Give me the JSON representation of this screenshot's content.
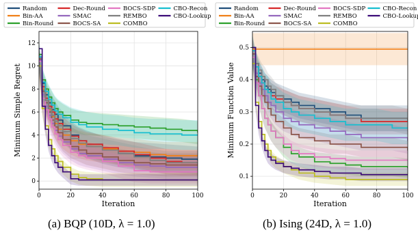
{
  "legend": [
    {
      "name": "Random",
      "color": "#1f4e79"
    },
    {
      "name": "Bin-AA",
      "color": "#f07f16"
    },
    {
      "name": "Bin-Round",
      "color": "#2ca02c"
    },
    {
      "name": "Dec-Round",
      "color": "#d62728"
    },
    {
      "name": "SMAC",
      "color": "#9467bd"
    },
    {
      "name": "BOCS-SA",
      "color": "#8c564b"
    },
    {
      "name": "BOCS-SDP",
      "color": "#e377c2"
    },
    {
      "name": "REMBO",
      "color": "#7f7f7f"
    },
    {
      "name": "COMBO",
      "color": "#bcbd22"
    },
    {
      "name": "CBO-Recon",
      "color": "#17becf"
    },
    {
      "name": "CBO-Lookup",
      "color": "#3b0a78"
    }
  ],
  "captions": {
    "a": "(a) BQP (10D, λ = 1.0)",
    "b": "(b) Ising (24D, λ = 1.0)"
  },
  "chart_data": [
    {
      "type": "line",
      "xlabel": "Iteration",
      "ylabel": "Minimum Simple Regret",
      "xlim": [
        0,
        100
      ],
      "ylim": [
        -0.7,
        13
      ],
      "xticks": [
        0,
        20,
        40,
        60,
        80,
        100
      ],
      "yticks": [
        0,
        2,
        4,
        6,
        8,
        10,
        12
      ],
      "grid": true,
      "legend_placement": "top",
      "x": [
        0,
        2,
        4,
        6,
        8,
        10,
        12,
        15,
        20,
        25,
        30,
        40,
        50,
        60,
        70,
        80,
        90,
        100
      ],
      "series": [
        {
          "name": "Random",
          "values": [
            11,
            8.5,
            7.5,
            6.8,
            6.2,
            5.8,
            5.3,
            4.8,
            4.0,
            3.5,
            3.2,
            2.7,
            2.4,
            2.2,
            2.1,
            2.0,
            1.9,
            1.8
          ],
          "band": 1.2
        },
        {
          "name": "Bin-AA",
          "values": [
            10.5,
            8.0,
            7.0,
            6.2,
            5.6,
            5.0,
            4.5,
            4.0,
            3.5,
            3.2,
            3.0,
            2.8,
            2.6,
            2.5,
            2.3,
            2.2,
            2.2,
            2.2
          ],
          "band": 1.2
        },
        {
          "name": "Bin-Round",
          "values": [
            11,
            8.8,
            8.0,
            7.3,
            6.8,
            6.3,
            6.0,
            5.7,
            5.3,
            5.1,
            5.0,
            4.9,
            4.8,
            4.7,
            4.6,
            4.5,
            4.4,
            4.2
          ],
          "band": 1.0
        },
        {
          "name": "Dec-Round",
          "values": [
            10.8,
            8.2,
            7.2,
            6.5,
            6.0,
            5.4,
            5.0,
            4.5,
            3.9,
            3.5,
            3.2,
            2.9,
            2.6,
            2.3,
            2.0,
            1.7,
            1.6,
            1.6
          ],
          "band": 1.1
        },
        {
          "name": "SMAC",
          "values": [
            10.5,
            7.5,
            6.5,
            5.7,
            5.0,
            4.4,
            3.9,
            3.4,
            2.8,
            2.4,
            2.2,
            1.9,
            1.6,
            1.4,
            1.3,
            1.2,
            1.2,
            1.2
          ],
          "band": 1.0
        },
        {
          "name": "BOCS-SA",
          "values": [
            10.6,
            7.8,
            6.8,
            6.0,
            5.3,
            4.7,
            4.2,
            3.6,
            3.0,
            2.7,
            2.4,
            2.1,
            1.8,
            1.6,
            1.5,
            1.4,
            1.4,
            1.4
          ],
          "band": 1.0
        },
        {
          "name": "BOCS-SDP",
          "values": [
            10.4,
            7.2,
            6.2,
            5.4,
            4.7,
            4.1,
            3.6,
            3.1,
            2.5,
            2.2,
            2.0,
            1.7,
            1.3,
            0.9,
            0.8,
            0.8,
            0.8,
            0.8
          ],
          "band": 1.0
        },
        {
          "name": "REMBO",
          "values": [
            10.7,
            7.9,
            7.0,
            6.3,
            5.7,
            5.2,
            4.8,
            4.3,
            3.7,
            3.3,
            3.0,
            2.7,
            2.4,
            2.1,
            1.8,
            1.6,
            1.6,
            1.6
          ],
          "band": 1.0
        },
        {
          "name": "COMBO",
          "values": [
            10.0,
            6.3,
            4.8,
            3.6,
            2.8,
            2.2,
            1.7,
            1.2,
            0.6,
            0.3,
            0.2,
            0.1,
            0.1,
            0.1,
            0.1,
            0.1,
            0.1,
            0.1
          ],
          "band": 0.6
        },
        {
          "name": "CBO-Recon",
          "values": [
            10.8,
            8.6,
            7.8,
            7.1,
            6.6,
            6.1,
            5.8,
            5.5,
            5.1,
            4.9,
            4.7,
            4.5,
            4.4,
            4.2,
            4.1,
            4.1,
            4.0,
            4.0
          ],
          "band": 1.3
        },
        {
          "name": "CBO-Lookup",
          "values": [
            11.5,
            6.5,
            4.5,
            3.1,
            2.2,
            1.6,
            1.2,
            0.8,
            0.2,
            0.1,
            0.1,
            0.1,
            0.1,
            0.1,
            0.1,
            0.1,
            0.1,
            0.1
          ],
          "band": 0.5
        }
      ]
    },
    {
      "type": "line",
      "xlabel": "Iteration",
      "ylabel": "Minimum Function Value",
      "xlim": [
        0,
        100
      ],
      "ylim": [
        0.06,
        0.55
      ],
      "xticks": [
        0,
        20,
        40,
        60,
        80,
        100
      ],
      "yticks": [
        0.1,
        0.2,
        0.3,
        0.4,
        0.5
      ],
      "grid": true,
      "legend_placement": "top",
      "x": [
        0,
        2,
        4,
        6,
        8,
        10,
        12,
        15,
        20,
        25,
        30,
        40,
        50,
        60,
        70,
        80,
        90,
        100
      ],
      "series": [
        {
          "name": "Random",
          "values": [
            0.5,
            0.45,
            0.42,
            0.4,
            0.38,
            0.37,
            0.36,
            0.35,
            0.34,
            0.33,
            0.32,
            0.31,
            0.3,
            0.29,
            0.28,
            0.28,
            0.28,
            0.28
          ],
          "band": 0.04
        },
        {
          "name": "Bin-AA",
          "values": [
            0.495,
            0.495,
            0.495,
            0.495,
            0.495,
            0.495,
            0.495,
            0.495,
            0.495,
            0.495,
            0.495,
            0.495,
            0.495,
            0.495,
            0.495,
            0.495,
            0.495,
            0.495
          ],
          "band": 0.05
        },
        {
          "name": "Bin-Round",
          "values": [
            0.47,
            0.4,
            0.35,
            0.31,
            0.28,
            0.26,
            0.24,
            0.22,
            0.19,
            0.17,
            0.16,
            0.145,
            0.14,
            0.135,
            0.13,
            0.13,
            0.13,
            0.125
          ],
          "band": 0.03
        },
        {
          "name": "Dec-Round",
          "values": [
            0.49,
            0.44,
            0.41,
            0.39,
            0.37,
            0.36,
            0.35,
            0.34,
            0.33,
            0.32,
            0.31,
            0.3,
            0.29,
            0.28,
            0.27,
            0.27,
            0.27,
            0.27
          ],
          "band": 0.04
        },
        {
          "name": "SMAC",
          "values": [
            0.48,
            0.42,
            0.39,
            0.37,
            0.35,
            0.33,
            0.32,
            0.3,
            0.28,
            0.27,
            0.26,
            0.25,
            0.24,
            0.23,
            0.22,
            0.22,
            0.22,
            0.21
          ],
          "band": 0.04
        },
        {
          "name": "BOCS-SA",
          "values": [
            0.48,
            0.41,
            0.38,
            0.35,
            0.33,
            0.31,
            0.29,
            0.27,
            0.25,
            0.23,
            0.22,
            0.21,
            0.2,
            0.2,
            0.19,
            0.19,
            0.19,
            0.18
          ],
          "band": 0.03
        },
        {
          "name": "BOCS-SDP",
          "values": [
            0.47,
            0.39,
            0.35,
            0.31,
            0.28,
            0.26,
            0.24,
            0.22,
            0.2,
            0.18,
            0.17,
            0.16,
            0.155,
            0.15,
            0.15,
            0.15,
            0.15,
            0.15
          ],
          "band": 0.03
        },
        {
          "name": "REMBO",
          "values": [
            0.49,
            0.45,
            0.43,
            0.41,
            0.4,
            0.38,
            0.37,
            0.35,
            0.33,
            0.32,
            0.31,
            0.3,
            0.29,
            0.28,
            0.28,
            0.28,
            0.28,
            0.27
          ],
          "band": 0.04
        },
        {
          "name": "COMBO",
          "values": [
            0.45,
            0.33,
            0.27,
            0.23,
            0.2,
            0.18,
            0.16,
            0.145,
            0.13,
            0.12,
            0.11,
            0.1,
            0.095,
            0.09,
            0.09,
            0.09,
            0.09,
            0.09
          ],
          "band": 0.02
        },
        {
          "name": "CBO-Recon",
          "values": [
            0.49,
            0.44,
            0.41,
            0.39,
            0.37,
            0.36,
            0.34,
            0.33,
            0.31,
            0.3,
            0.29,
            0.28,
            0.27,
            0.26,
            0.26,
            0.26,
            0.25,
            0.25
          ],
          "band": 0.05
        },
        {
          "name": "CBO-Lookup",
          "values": [
            0.5,
            0.32,
            0.25,
            0.21,
            0.18,
            0.16,
            0.15,
            0.14,
            0.13,
            0.125,
            0.12,
            0.115,
            0.11,
            0.11,
            0.105,
            0.105,
            0.105,
            0.105
          ],
          "band": 0.02
        }
      ]
    }
  ]
}
